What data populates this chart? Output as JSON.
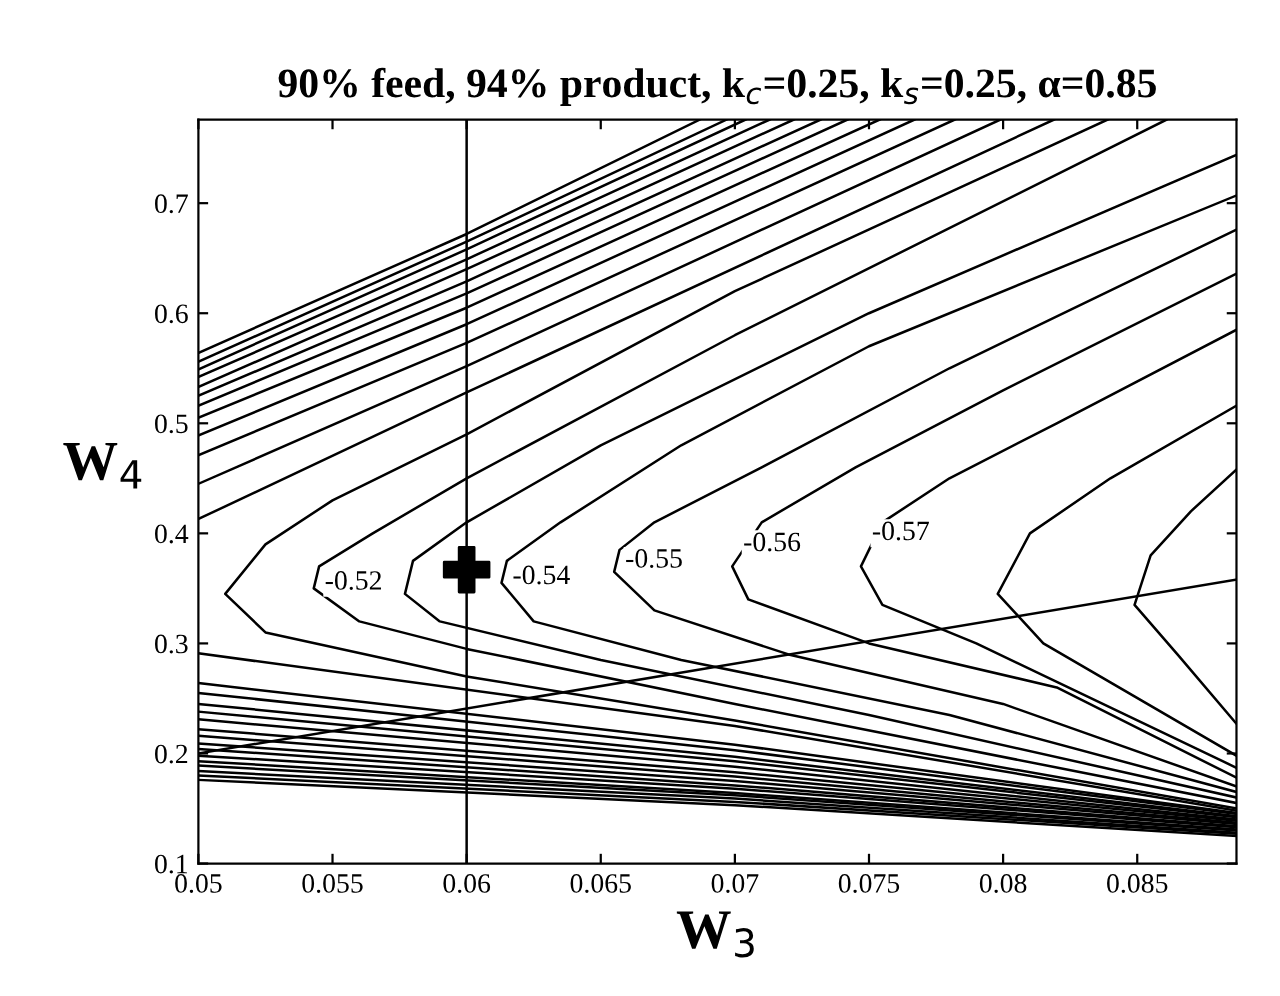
{
  "chart_data": {
    "type": "line",
    "title": "90% feed, 94% product, k$_{c}$=0.25, k$_{s}$=0.25, α=0.85",
    "xlabel": "W$_{3}$",
    "ylabel": "W$_{4}$",
    "xlim": [
      0.05,
      0.0887
    ],
    "ylim": [
      0.1,
      0.776
    ],
    "xticks": [
      0.05,
      0.055,
      0.06,
      0.065,
      0.07,
      0.075,
      0.08,
      0.085
    ],
    "yticks": [
      0.1,
      0.2,
      0.3,
      0.4,
      0.5,
      0.6,
      0.7
    ],
    "ref_lines": [
      {
        "axis": "x",
        "value": 0.06,
        "color": "#000000"
      }
    ],
    "annotations": [
      {
        "text": "-0.52",
        "x": 0.0545,
        "y": 0.355
      },
      {
        "text": "-0.54",
        "x": 0.0615,
        "y": 0.36
      },
      {
        "text": "-0.55",
        "x": 0.0657,
        "y": 0.375
      },
      {
        "text": "-0.56",
        "x": 0.0701,
        "y": 0.39
      },
      {
        "text": "-0.57",
        "x": 0.0749,
        "y": 0.4
      }
    ],
    "series": [
      {
        "color": "#000000",
        "x": [
          0.05,
          0.06,
          0.0687
        ],
        "values": [
          0.564,
          0.672,
          0.776
        ]
      },
      {
        "color": "#000000",
        "x": [
          0.05,
          0.06,
          0.0697
        ],
        "values": [
          0.556,
          0.665,
          0.776
        ]
      },
      {
        "color": "#000000",
        "x": [
          0.05,
          0.06,
          0.0704
        ],
        "values": [
          0.549,
          0.658,
          0.776
        ]
      },
      {
        "color": "#000000",
        "x": [
          0.05,
          0.06,
          0.0713
        ],
        "values": [
          0.542,
          0.649,
          0.776
        ]
      },
      {
        "color": "#000000",
        "x": [
          0.05,
          0.06,
          0.0722
        ],
        "values": [
          0.533,
          0.64,
          0.776
        ]
      },
      {
        "color": "#000000",
        "x": [
          0.05,
          0.06,
          0.0732
        ],
        "values": [
          0.525,
          0.629,
          0.776
        ]
      },
      {
        "color": "#000000",
        "x": [
          0.05,
          0.06,
          0.0742
        ],
        "values": [
          0.516,
          0.618,
          0.776
        ]
      },
      {
        "color": "#000000",
        "x": [
          0.05,
          0.06,
          0.0754
        ],
        "values": [
          0.505,
          0.605,
          0.776
        ]
      },
      {
        "color": "#000000",
        "x": [
          0.05,
          0.06,
          0.0767
        ],
        "values": [
          0.489,
          0.59,
          0.776
        ]
      },
      {
        "color": "#000000",
        "x": [
          0.05,
          0.06,
          0.0782
        ],
        "values": [
          0.471,
          0.573,
          0.776
        ]
      },
      {
        "color": "#000000",
        "x": [
          0.05,
          0.06,
          0.0799
        ],
        "values": [
          0.445,
          0.552,
          0.776
        ]
      },
      {
        "color": "#000000",
        "x": [
          0.05,
          0.06,
          0.0819
        ],
        "values": [
          0.413,
          0.528,
          0.776
        ]
      },
      {
        "color": "#000000",
        "x": [
          0.0839,
          0.07,
          0.06,
          0.055,
          0.0525,
          0.051,
          0.0525,
          0.06,
          0.07,
          0.0887
        ],
        "values": [
          0.776,
          0.62,
          0.49,
          0.43,
          0.39,
          0.345,
          0.31,
          0.27,
          0.23,
          0.15
        ]
      },
      {
        "color": "#000000",
        "x": [
          0.0861,
          0.07,
          0.06,
          0.0565,
          0.0545,
          0.0543,
          0.056,
          0.06,
          0.07,
          0.0887
        ],
        "values": [
          0.776,
          0.58,
          0.45,
          0.4,
          0.37,
          0.35,
          0.32,
          0.295,
          0.245,
          0.155
        ]
      },
      {
        "color": "#000000",
        "x": [
          0.0887,
          0.075,
          0.065,
          0.06,
          0.058,
          0.0577,
          0.059,
          0.065,
          0.075,
          0.0887
        ],
        "values": [
          0.744,
          0.6,
          0.48,
          0.41,
          0.375,
          0.345,
          0.32,
          0.285,
          0.235,
          0.16
        ]
      },
      {
        "color": "#000000",
        "x": [
          0.0887,
          0.075,
          0.068,
          0.0635,
          0.0615,
          0.0613,
          0.0625,
          0.068,
          0.078,
          0.0887
        ],
        "values": [
          0.707,
          0.57,
          0.48,
          0.41,
          0.375,
          0.355,
          0.32,
          0.285,
          0.235,
          0.165
        ]
      },
      {
        "color": "#000000",
        "x": [
          0.0887,
          0.078,
          0.071,
          0.067,
          0.0657,
          0.0655,
          0.067,
          0.072,
          0.08,
          0.0887
        ],
        "values": [
          0.676,
          0.55,
          0.46,
          0.41,
          0.385,
          0.365,
          0.33,
          0.29,
          0.245,
          0.17
        ]
      },
      {
        "color": "#000000",
        "x": [
          0.0887,
          0.08,
          0.0745,
          0.071,
          0.0699,
          0.0705,
          0.075,
          0.082,
          0.0887
        ],
        "values": [
          0.636,
          0.53,
          0.46,
          0.41,
          0.37,
          0.34,
          0.3,
          0.26,
          0.178
        ]
      },
      {
        "color": "#000000",
        "x": [
          0.0887,
          0.082,
          0.078,
          0.0755,
          0.0747,
          0.0755,
          0.079,
          0.0887
        ],
        "values": [
          0.585,
          0.5,
          0.45,
          0.41,
          0.37,
          0.335,
          0.3,
          0.187
        ]
      },
      {
        "color": "#000000",
        "x": [
          0.0887,
          0.084,
          0.081,
          0.0798,
          0.0815,
          0.0887
        ],
        "values": [
          0.516,
          0.45,
          0.4,
          0.345,
          0.3,
          0.198
        ]
      },
      {
        "color": "#000000",
        "x": [
          0.0887,
          0.087,
          0.0855,
          0.0849,
          0.0865,
          0.0887
        ],
        "values": [
          0.458,
          0.42,
          0.38,
          0.335,
          0.29,
          0.227
        ]
      },
      {
        "color": "#000000",
        "x": [
          0.05,
          0.07,
          0.0887
        ],
        "values": [
          0.291,
          0.225,
          0.148
        ]
      },
      {
        "color": "#000000",
        "x": [
          0.05,
          0.07,
          0.0887
        ],
        "values": [
          0.264,
          0.208,
          0.146
        ]
      },
      {
        "color": "#000000",
        "x": [
          0.05,
          0.07,
          0.0887
        ],
        "values": [
          0.255,
          0.203,
          0.145
        ]
      },
      {
        "color": "#000000",
        "x": [
          0.05,
          0.07,
          0.0887
        ],
        "values": [
          0.245,
          0.197,
          0.143
        ]
      },
      {
        "color": "#000000",
        "x": [
          0.05,
          0.07,
          0.0887
        ],
        "values": [
          0.238,
          0.193,
          0.142
        ]
      },
      {
        "color": "#000000",
        "x": [
          0.05,
          0.07,
          0.0887
        ],
        "values": [
          0.231,
          0.188,
          0.14
        ]
      },
      {
        "color": "#000000",
        "x": [
          0.05,
          0.07,
          0.0887
        ],
        "values": [
          0.222,
          0.183,
          0.139
        ]
      },
      {
        "color": "#000000",
        "x": [
          0.05,
          0.07,
          0.0887
        ],
        "values": [
          0.216,
          0.179,
          0.137
        ]
      },
      {
        "color": "#000000",
        "x": [
          0.05,
          0.07,
          0.0887
        ],
        "values": [
          0.209,
          0.175,
          0.136
        ]
      },
      {
        "color": "#000000",
        "x": [
          0.05,
          0.07,
          0.0887
        ],
        "values": [
          0.204,
          0.171,
          0.134
        ]
      },
      {
        "color": "#000000",
        "x": [
          0.05,
          0.07,
          0.0887
        ],
        "values": [
          0.198,
          0.168,
          0.133
        ]
      },
      {
        "color": "#000000",
        "x": [
          0.05,
          0.07,
          0.0887
        ],
        "values": [
          0.193,
          0.164,
          0.131
        ]
      },
      {
        "color": "#000000",
        "x": [
          0.05,
          0.07,
          0.0887
        ],
        "values": [
          0.189,
          0.162,
          0.13
        ]
      },
      {
        "color": "#000000",
        "x": [
          0.05,
          0.07,
          0.0887
        ],
        "values": [
          0.184,
          0.159,
          0.128
        ]
      },
      {
        "color": "#000000",
        "x": [
          0.05,
          0.07,
          0.0887
        ],
        "values": [
          0.18,
          0.156,
          0.127
        ]
      },
      {
        "color": "#000000",
        "x": [
          0.05,
          0.07,
          0.0887
        ],
        "values": [
          0.176,
          0.153,
          0.125
        ]
      },
      {
        "color": "#000000",
        "x": [
          0.05,
          0.0887
        ],
        "values": [
          0.2,
          0.358
        ]
      },
      {
        "type": "scatter",
        "color": "#000000",
        "marker": "cross",
        "x": [
          0.06
        ],
        "values": [
          0.367
        ]
      }
    ]
  }
}
